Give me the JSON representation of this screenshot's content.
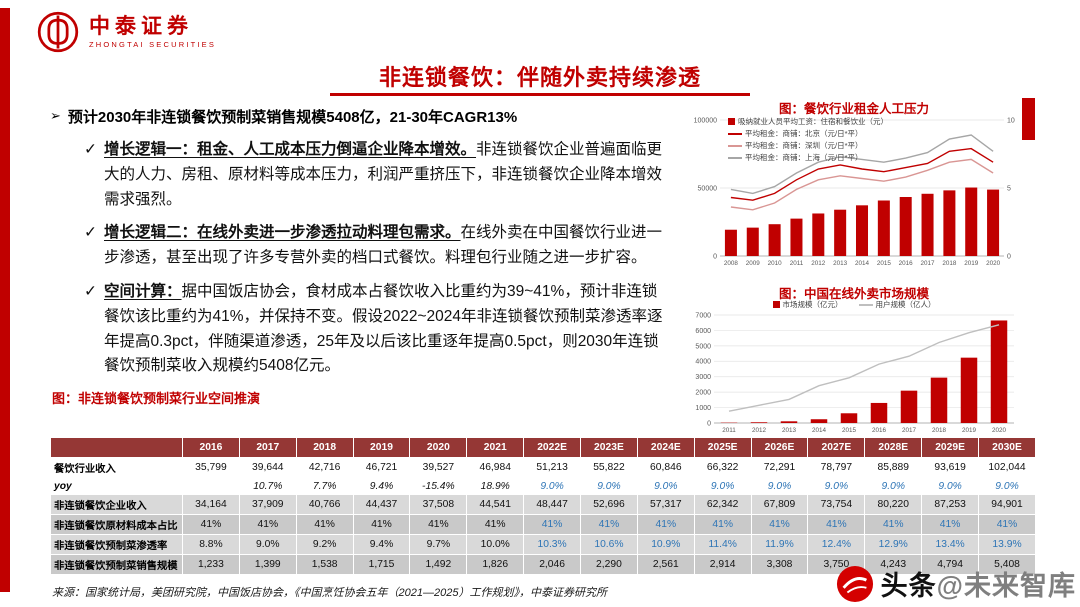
{
  "colors": {
    "accent_red": "#c00000",
    "table_header_bg": "#953735",
    "estimate_blue": "#2e75b6",
    "band_gray_light": "#d9d9d9",
    "band_gray_dark": "#c9c9c9"
  },
  "brand": {
    "name": "中泰证券",
    "name_en": "ZHONGTAI SECURITIES"
  },
  "page_title": "非连锁餐饮：伴随外卖持续渗透",
  "left": {
    "bullet_char": "➢",
    "check_char": "✓",
    "headline": "预计2030年非连锁餐饮预制菜销售规模5408亿，21-30年CAGR13%",
    "points": [
      {
        "head": "增长逻辑一：租金、人工成本压力倒逼企业降本增效。",
        "body": "非连锁餐饮企业普遍面临更大的人力、房租、原材料等成本压力，利润严重挤压下，非连锁餐饮企业降本增效需求强烈。"
      },
      {
        "head": "增长逻辑二：在线外卖进一步渗透拉动料理包需求。",
        "body": "在线外卖在中国餐饮行业进一步渗透，甚至出现了许多专营外卖的档口式餐饮。料理包行业随之进一步扩容。"
      },
      {
        "head": "空间计算：",
        "body": "据中国饭店协会，食材成本占餐饮收入比重约为39~41%，预计非连锁餐饮该比重约为41%，并保持不变。假设2022~2024年非连锁餐饮预制菜渗透率逐年提高0.3pct，伴随渠道渗透，25年及以后该比重逐年提高0.5pct，则2030年连锁餐饮预制菜收入规模约5408亿元。"
      }
    ],
    "table_caption": "图：非连锁餐饮预制菜行业空间推演"
  },
  "chart_data": [
    {
      "type": "bar+line",
      "title": "图：餐饮行业租金人工压力",
      "categories": [
        "2008",
        "2009",
        "2010",
        "2011",
        "2012",
        "2013",
        "2014",
        "2015",
        "2016",
        "2017",
        "2018",
        "2019",
        "2020"
      ],
      "series": [
        {
          "name": "吸纳就业人员平均工资：住宿和餐饮业（元）",
          "type": "bar",
          "axis": "left",
          "color": "#c00000",
          "values": [
            19321,
            20860,
            23382,
            27486,
            31267,
            34044,
            37264,
            40806,
            43382,
            45751,
            48260,
            50346,
            48833
          ]
        },
        {
          "name": "平均租金：商铺：北京（元/日*平）",
          "type": "line",
          "axis": "right",
          "color": "#c00000",
          "values": [
            4.3,
            4.1,
            4.6,
            5.6,
            6.4,
            6.7,
            6.4,
            6.2,
            6.5,
            6.8,
            7.7,
            7.9,
            6.9
          ]
        },
        {
          "name": "平均租金：商铺：深圳（元/日*平）",
          "type": "line",
          "axis": "right",
          "color": "#d99694",
          "values": [
            3.6,
            3.4,
            3.9,
            4.9,
            5.6,
            5.9,
            5.7,
            5.5,
            5.8,
            6.3,
            6.9,
            7.1,
            6.1
          ]
        },
        {
          "name": "平均租金：商铺：上海（元/日*平）",
          "type": "line",
          "axis": "right",
          "color": "#a6a6a6",
          "values": [
            4.9,
            4.6,
            5.1,
            6.1,
            6.9,
            7.3,
            7.1,
            6.9,
            7.2,
            7.6,
            8.6,
            8.9,
            7.7
          ]
        }
      ],
      "left_axis": {
        "min": 0,
        "max": 100000,
        "ticks": [
          0,
          50000,
          100000
        ]
      },
      "right_axis": {
        "min": 0,
        "max": 10,
        "ticks": [
          0,
          5,
          10
        ]
      },
      "legend_position": "top-left-vertical",
      "grid": true
    },
    {
      "type": "bar+line",
      "title": "图：中国在线外卖市场规模",
      "categories": [
        "2011",
        "2012",
        "2013",
        "2014",
        "2015",
        "2016",
        "2017",
        "2018",
        "2019",
        "2020"
      ],
      "series": [
        {
          "name": "市场规模（亿元）",
          "type": "bar",
          "axis": "left",
          "color": "#c00000",
          "values": [
            22,
            48,
            110,
            244,
            630,
            1300,
            2096,
            2940,
            4235,
            6646
          ]
        },
        {
          "name": "用户规模（亿人）",
          "type": "line",
          "axis": "right",
          "color": "#bfbfbf",
          "values": [
            0.6,
            0.9,
            1.2,
            1.9,
            2.3,
            3.0,
            3.4,
            4.1,
            4.6,
            5.0
          ]
        }
      ],
      "left_axis": {
        "min": 0,
        "max": 7000,
        "ticks": [
          0,
          1000,
          2000,
          3000,
          4000,
          5000,
          6000,
          7000
        ]
      },
      "right_axis": {
        "min": 0,
        "max": 5.5,
        "ticks": []
      },
      "legend_position": "top-horizontal",
      "grid": true
    }
  ],
  "table": {
    "columns": [
      "2016",
      "2017",
      "2018",
      "2019",
      "2020",
      "2021",
      "2022E",
      "2023E",
      "2024E",
      "2025E",
      "2026E",
      "2027E",
      "2028E",
      "2029E",
      "2030E"
    ],
    "estimate_start_index": 6,
    "rows": [
      {
        "label": "餐饮行业收入",
        "band": "white",
        "italic": false,
        "e_blue": false,
        "values": [
          "35,799",
          "39,644",
          "42,716",
          "46,721",
          "39,527",
          "46,984",
          "51,213",
          "55,822",
          "60,846",
          "66,322",
          "72,291",
          "78,797",
          "85,889",
          "93,619",
          "102,044"
        ]
      },
      {
        "label": "yoy",
        "band": "white",
        "italic": true,
        "e_blue": true,
        "values": [
          "",
          "10.7%",
          "7.7%",
          "9.4%",
          "-15.4%",
          "18.9%",
          "9.0%",
          "9.0%",
          "9.0%",
          "9.0%",
          "9.0%",
          "9.0%",
          "9.0%",
          "9.0%",
          "9.0%"
        ]
      },
      {
        "label": "非连锁餐饮企业收入",
        "band": "gray1",
        "italic": false,
        "e_blue": false,
        "values": [
          "34,164",
          "37,909",
          "40,766",
          "44,437",
          "37,508",
          "44,541",
          "48,447",
          "52,696",
          "57,317",
          "62,342",
          "67,809",
          "73,754",
          "80,220",
          "87,253",
          "94,901"
        ]
      },
      {
        "label": "非连锁餐饮原材料成本占比",
        "band": "gray2",
        "italic": false,
        "e_blue": true,
        "values": [
          "41%",
          "41%",
          "41%",
          "41%",
          "41%",
          "41%",
          "41%",
          "41%",
          "41%",
          "41%",
          "41%",
          "41%",
          "41%",
          "41%",
          "41%"
        ]
      },
      {
        "label": "非连锁餐饮预制菜渗透率",
        "band": "gray1",
        "italic": false,
        "e_blue": true,
        "values": [
          "8.8%",
          "9.0%",
          "9.2%",
          "9.4%",
          "9.7%",
          "10.0%",
          "10.3%",
          "10.6%",
          "10.9%",
          "11.4%",
          "11.9%",
          "12.4%",
          "12.9%",
          "13.4%",
          "13.9%"
        ]
      },
      {
        "label": "非连锁餐饮预制菜销售规模",
        "band": "gray2",
        "italic": false,
        "e_blue": false,
        "values": [
          "1,233",
          "1,399",
          "1,538",
          "1,715",
          "1,492",
          "1,826",
          "2,046",
          "2,290",
          "2,561",
          "2,914",
          "3,308",
          "3,750",
          "4,243",
          "4,794",
          "5,408"
        ]
      }
    ]
  },
  "source": "来源：国家统计局，美团研究院，中国饭店协会，《中国烹饪协会五年（2021—2025）工作规划》，中泰证券研究所",
  "watermark": {
    "prefix": "头条",
    "handle": "@未来智库"
  }
}
